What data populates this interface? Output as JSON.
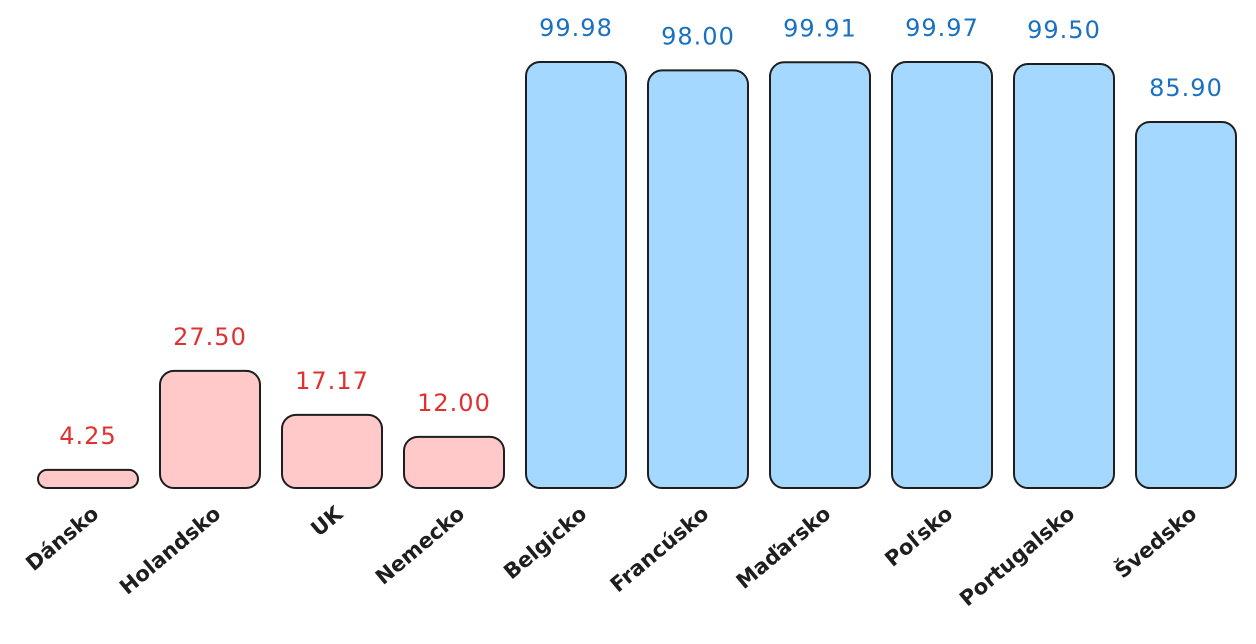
{
  "chart_data": {
    "type": "bar",
    "categories": [
      "Dánsko",
      "Holandsko",
      "UK",
      "Nemecko",
      "Belgicko",
      "Francúsko",
      "Maďarsko",
      "Poľsko",
      "Portugalsko",
      "Švedsko"
    ],
    "values": [
      4.25,
      27.5,
      17.17,
      12,
      99.98,
      98,
      99.91,
      99.97,
      99.5,
      85.9
    ],
    "value_labels": [
      "4.25",
      "27.50",
      "17.17",
      "12.00",
      "99.98",
      "98.00",
      "99.91",
      "99.97",
      "99.50",
      "85.90"
    ],
    "colors": [
      "#ffc9c9",
      "#ffc9c9",
      "#ffc9c9",
      "#ffc9c9",
      "#a5d8ff",
      "#a5d8ff",
      "#a5d8ff",
      "#a5d8ff",
      "#a5d8ff",
      "#a5d8ff"
    ],
    "label_colors": [
      "#e03131",
      "#e03131",
      "#e03131",
      "#e03131",
      "#1971c2",
      "#1971c2",
      "#1971c2",
      "#1971c2",
      "#1971c2",
      "#1971c2"
    ]
  }
}
